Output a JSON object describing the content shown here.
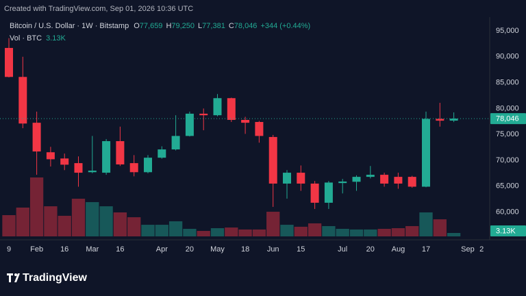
{
  "header": "Created with TradingView.com, Sep 01, 2026 10:36 UTC",
  "brand": "TradingView",
  "chart_data": {
    "type": "candlestick",
    "title": "Bitcoin / U.S. Dollar · 1W · Bitstamp",
    "legend": {
      "ohlc": [
        {
          "label": "O",
          "value": "77,659"
        },
        {
          "label": "H",
          "value": "79,250"
        },
        {
          "label": "L",
          "value": "77,381"
        },
        {
          "label": "C",
          "value": "78,046"
        }
      ],
      "change": "+344 (+0.44%)",
      "volume_label": "Vol · BTC",
      "volume_value": "3.13K"
    },
    "last_price_label": "78,046",
    "up_color": "#22ab94",
    "down_color": "#f23645",
    "grid": false,
    "categories": [
      "9",
      null,
      "Feb",
      null,
      "16",
      null,
      "Mar",
      null,
      "16",
      null,
      null,
      "Apr",
      null,
      "20",
      null,
      "May",
      null,
      "18",
      null,
      "Jun",
      null,
      "15",
      null,
      null,
      "Jul",
      null,
      "20",
      null,
      "Aug",
      null,
      "17",
      null,
      null,
      "Sep",
      "2"
    ],
    "open": [
      91700,
      86100,
      77250,
      71550,
      70350,
      69450,
      67700,
      67600,
      73700,
      69450,
      67700,
      70500,
      72100,
      74700,
      79000,
      78700,
      82000,
      77800,
      77400,
      74500,
      65500,
      67600,
      65500,
      61800,
      65600,
      65850,
      66800,
      67200,
      66800,
      66800,
      64900,
      78000,
      77659,
      null,
      null
    ],
    "high": [
      93600,
      90000,
      79400,
      72600,
      71300,
      70750,
      74700,
      74100,
      76500,
      71000,
      71000,
      72700,
      78700,
      79400,
      80000,
      82800,
      82100,
      78400,
      77600,
      74900,
      68100,
      69000,
      66000,
      66000,
      66400,
      67100,
      68900,
      67600,
      67600,
      67000,
      79400,
      81100,
      79250,
      null,
      null
    ],
    "low": [
      86000,
      76200,
      67200,
      68800,
      68100,
      64900,
      67500,
      67200,
      68900,
      66900,
      67500,
      70300,
      71900,
      74600,
      75800,
      78500,
      77400,
      75100,
      73400,
      61000,
      62600,
      64100,
      60600,
      60600,
      63600,
      64100,
      66500,
      64900,
      64500,
      64700,
      64800,
      76500,
      77381,
      null,
      null
    ],
    "close": [
      86100,
      77100,
      71700,
      70200,
      69150,
      67600,
      68000,
      73700,
      69200,
      67700,
      70500,
      72100,
      74700,
      79000,
      78700,
      82000,
      77800,
      77250,
      74700,
      65500,
      67600,
      65500,
      61800,
      65700,
      65900,
      66800,
      67200,
      65500,
      65500,
      64900,
      78000,
      77650,
      78046,
      null,
      null
    ],
    "volume": [
      19400,
      26300,
      53800,
      27500,
      18800,
      34400,
      31300,
      27500,
      21900,
      17500,
      10600,
      10600,
      13800,
      6900,
      5000,
      7500,
      8100,
      6300,
      6300,
      22500,
      10600,
      8800,
      11900,
      9400,
      6900,
      6300,
      6300,
      6900,
      7500,
      9400,
      21900,
      15600,
      3130,
      null,
      null
    ],
    "ylim": [
      55300,
      97650
    ],
    "yticks": [
      {
        "value": 60000,
        "label": "60,000"
      },
      {
        "value": 65000,
        "label": "65,000"
      },
      {
        "value": 70000,
        "label": "70,000"
      },
      {
        "value": 75000,
        "label": "75,000"
      },
      {
        "value": 80000,
        "label": "80,000"
      },
      {
        "value": 85000,
        "label": "85,000"
      },
      {
        "value": 90000,
        "label": "90,000"
      },
      {
        "value": 95000,
        "label": "95,000"
      }
    ]
  }
}
